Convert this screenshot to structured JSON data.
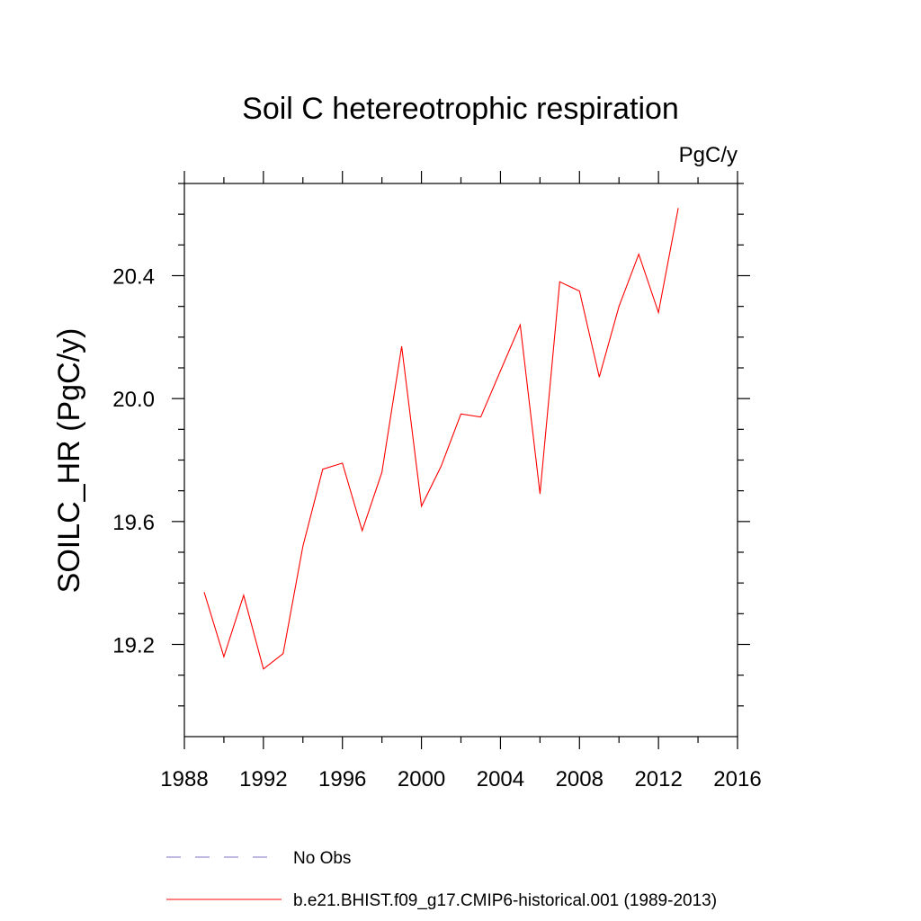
{
  "chart_data": {
    "type": "line",
    "title": "Soil C hetereotrophic respiration",
    "units_label": "PgC/y",
    "ylabel": "SOILC_HR  (PgC/y)",
    "xlabel": "",
    "xlim": [
      1988,
      2016
    ],
    "ylim": [
      18.9,
      20.7
    ],
    "x_ticks": [
      1988,
      1992,
      1996,
      2000,
      2004,
      2008,
      2012,
      2016
    ],
    "x_tick_labels": [
      "1988",
      "1992",
      "1996",
      "2000",
      "2004",
      "2008",
      "2012",
      "2016"
    ],
    "y_ticks": [
      19.2,
      19.6,
      20.0,
      20.4
    ],
    "y_tick_labels": [
      "19.2",
      "19.6",
      "20.0",
      "20.4"
    ],
    "grid": false,
    "series": [
      {
        "name": "b.e21.BHIST.f09_g17.CMIP6-historical.001 (1989-2013)",
        "color": "#ff0000",
        "style": "solid",
        "x": [
          1989,
          1990,
          1991,
          1992,
          1993,
          1994,
          1995,
          1996,
          1997,
          1998,
          1999,
          2000,
          2001,
          2002,
          2003,
          2004,
          2005,
          2006,
          2007,
          2008,
          2009,
          2010,
          2011,
          2012,
          2013
        ],
        "values": [
          19.37,
          19.16,
          19.36,
          19.12,
          19.17,
          19.52,
          19.77,
          19.79,
          19.57,
          19.76,
          20.17,
          19.65,
          19.78,
          19.95,
          19.94,
          20.09,
          20.24,
          19.69,
          20.38,
          20.35,
          20.07,
          20.3,
          20.47,
          20.28,
          20.62
        ]
      }
    ],
    "legend": [
      {
        "label": "No Obs",
        "color": "#7b72c4",
        "style": "dashed"
      },
      {
        "label": "b.e21.BHIST.f09_g17.CMIP6-historical.001 (1989-2013)",
        "color": "#ff0000",
        "style": "solid"
      }
    ],
    "legend_position": "bottom-center"
  }
}
